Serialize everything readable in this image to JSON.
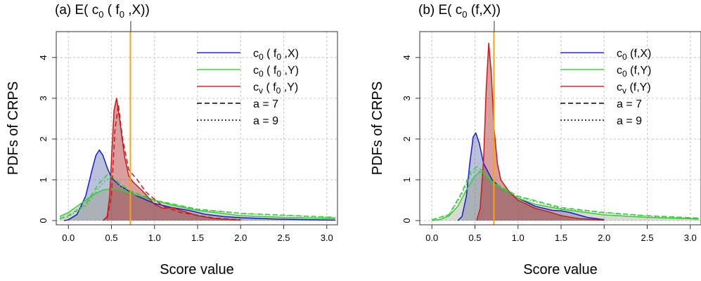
{
  "chart_data": [
    {
      "type": "area",
      "panel_label": "(a)",
      "title_prefix": "E(",
      "title_main": "c",
      "title_sub": "0",
      "title_args": " ( f",
      "title_args_sub": "0",
      "title_tail": " ,X))",
      "xlabel": "Score value",
      "ylabel": "PDFs of CRPS",
      "xlim": [
        -0.1,
        3.1
      ],
      "ylim": [
        0,
        4.6
      ],
      "xticks": [
        "0.0",
        "0.5",
        "1.0",
        "1.5",
        "2.0",
        "2.5",
        "3.0"
      ],
      "yticks": [
        "0",
        "1",
        "2",
        "3",
        "4"
      ],
      "grid": true,
      "legend_position": "top-right",
      "vline_x": 0.72,
      "legend": [
        {
          "base": "c",
          "sub": "0",
          "args": " ( f",
          "args_sub": "0",
          "tail": " ,X)",
          "color": "#2a2ad9",
          "style": "solid"
        },
        {
          "base": "c",
          "sub": "0",
          "args": " ( f",
          "args_sub": "0",
          "tail": " ,Y)",
          "color": "#3fd83f",
          "style": "solid"
        },
        {
          "base": "c",
          "sub": "v",
          "args": " ( f",
          "args_sub": "0",
          "tail": " ,Y)",
          "color": "#d42a2a",
          "style": "solid"
        },
        {
          "text": "a = 7",
          "color": "#000000",
          "style": "dashed"
        },
        {
          "text": "a = 9",
          "color": "#000000",
          "style": "dotted"
        }
      ],
      "series": [
        {
          "name": "c0 (f0,X)",
          "color": "#1a1ad0",
          "fill": "rgba(90,110,170,0.42)",
          "style": "solid",
          "x": [
            -0.05,
            0.0,
            0.1,
            0.2,
            0.27,
            0.32,
            0.36,
            0.4,
            0.45,
            0.5,
            0.6,
            0.8,
            1.0,
            1.2,
            1.4,
            1.6,
            1.8,
            2.0,
            2.4,
            2.8,
            3.1
          ],
          "y": [
            0.0,
            0.02,
            0.15,
            0.6,
            1.2,
            1.6,
            1.73,
            1.6,
            1.3,
            1.05,
            0.85,
            0.6,
            0.42,
            0.32,
            0.25,
            0.15,
            0.1,
            0.07,
            0.04,
            0.02,
            0.01
          ]
        },
        {
          "name": "c0 (f0,Y)",
          "color": "#33cc33",
          "fill": "rgba(140,150,120,0.35)",
          "style": "solid",
          "x": [
            -0.1,
            0.0,
            0.1,
            0.2,
            0.3,
            0.4,
            0.5,
            0.6,
            0.8,
            1.0,
            1.2,
            1.5,
            2.0,
            2.5,
            3.1
          ],
          "y": [
            0.1,
            0.2,
            0.35,
            0.5,
            0.65,
            0.75,
            0.78,
            0.75,
            0.62,
            0.5,
            0.38,
            0.25,
            0.12,
            0.08,
            0.05
          ]
        },
        {
          "name": "cv (f0,Y)",
          "color": "#cc1a1a",
          "fill": "rgba(170,40,40,0.45)",
          "style": "solid",
          "x": [
            0.4,
            0.45,
            0.48,
            0.5,
            0.53,
            0.56,
            0.6,
            0.65,
            0.7,
            0.75,
            0.85,
            1.0,
            1.1,
            1.2,
            1.35,
            1.5,
            1.7,
            2.0
          ],
          "y": [
            0.0,
            0.1,
            0.6,
            1.5,
            2.7,
            3.0,
            2.4,
            1.6,
            1.1,
            0.95,
            0.75,
            0.4,
            0.3,
            0.32,
            0.22,
            0.12,
            0.05,
            0.01
          ]
        },
        {
          "name": "c0 (f0,Y) a=7",
          "color": "#33cc33",
          "fill": "none",
          "style": "dashed",
          "x": [
            -0.1,
            0.0,
            0.2,
            0.35,
            0.45,
            0.55,
            0.7,
            1.0,
            1.5,
            2.0,
            3.1
          ],
          "y": [
            0.05,
            0.12,
            0.4,
            0.9,
            1.12,
            1.0,
            0.75,
            0.5,
            0.28,
            0.18,
            0.08
          ]
        },
        {
          "name": "cv (f0,Y) a=7",
          "color": "#cc1a1a",
          "fill": "none",
          "style": "dashed",
          "x": [
            0.45,
            0.5,
            0.54,
            0.58,
            0.63,
            0.7,
            0.8,
            0.9,
            1.1,
            1.3,
            1.7,
            2.0
          ],
          "y": [
            0.05,
            0.6,
            2.2,
            2.85,
            2.0,
            1.25,
            1.0,
            0.7,
            0.35,
            0.2,
            0.06,
            0.02
          ]
        },
        {
          "name": "c0 (f0,Y) a=9",
          "color": "#33cc33",
          "fill": "none",
          "style": "dotted",
          "x": [
            -0.1,
            0.0,
            0.2,
            0.35,
            0.45,
            0.55,
            0.7,
            1.0,
            1.5,
            2.0,
            3.1
          ],
          "y": [
            0.04,
            0.1,
            0.35,
            0.8,
            1.02,
            0.92,
            0.7,
            0.48,
            0.27,
            0.17,
            0.07
          ]
        }
      ]
    },
    {
      "type": "area",
      "panel_label": "(b)",
      "title_prefix": "E(",
      "title_main": "c",
      "title_sub": "0",
      "title_args": " (f,X))",
      "title_args_sub": "",
      "title_tail": "",
      "xlabel": "Score value",
      "ylabel": "PDFs of CRPS",
      "xlim": [
        -0.1,
        3.1
      ],
      "ylim": [
        0,
        4.6
      ],
      "xticks": [
        "0.0",
        "0.5",
        "1.0",
        "1.5",
        "2.0",
        "2.5",
        "3.0"
      ],
      "yticks": [
        "0",
        "1",
        "2",
        "3",
        "4"
      ],
      "grid": true,
      "legend_position": "top-right",
      "vline_x": 0.72,
      "legend": [
        {
          "base": "c",
          "sub": "0",
          "args": " (f,X)",
          "args_sub": "",
          "tail": "",
          "color": "#2a2ad9",
          "style": "solid"
        },
        {
          "base": "c",
          "sub": "0",
          "args": " (f,Y)",
          "args_sub": "",
          "tail": "",
          "color": "#3fd83f",
          "style": "solid"
        },
        {
          "base": "c",
          "sub": "v",
          "args": " (f,Y)",
          "args_sub": "",
          "tail": "",
          "color": "#d42a2a",
          "style": "solid"
        },
        {
          "text": "a = 7",
          "color": "#000000",
          "style": "dashed"
        },
        {
          "text": "a = 9",
          "color": "#000000",
          "style": "dotted"
        }
      ],
      "series": [
        {
          "name": "c0 (f,X)",
          "color": "#1a1ad0",
          "fill": "rgba(90,110,170,0.42)",
          "style": "solid",
          "x": [
            0.3,
            0.35,
            0.4,
            0.44,
            0.48,
            0.51,
            0.55,
            0.6,
            0.7,
            0.8,
            1.0,
            1.2,
            1.4,
            1.5,
            1.6,
            1.8,
            2.0
          ],
          "y": [
            0.0,
            0.1,
            0.6,
            1.4,
            2.05,
            2.15,
            1.9,
            1.4,
            1.0,
            0.8,
            0.55,
            0.35,
            0.25,
            0.24,
            0.2,
            0.08,
            0.02
          ]
        },
        {
          "name": "c0 (f,Y)",
          "color": "#33cc33",
          "fill": "rgba(140,150,120,0.35)",
          "style": "solid",
          "x": [
            0.0,
            0.1,
            0.2,
            0.3,
            0.4,
            0.5,
            0.56,
            0.62,
            0.7,
            0.8,
            1.0,
            1.2,
            1.5,
            2.0,
            2.5,
            3.1
          ],
          "y": [
            0.0,
            0.03,
            0.12,
            0.35,
            0.75,
            1.1,
            1.2,
            1.12,
            0.95,
            0.8,
            0.55,
            0.4,
            0.28,
            0.14,
            0.08,
            0.04
          ]
        },
        {
          "name": "cv (f,Y)",
          "color": "#cc1a1a",
          "fill": "rgba(170,40,40,0.45)",
          "style": "solid",
          "x": [
            0.52,
            0.56,
            0.6,
            0.63,
            0.66,
            0.69,
            0.72,
            0.76,
            0.8,
            0.9,
            1.0,
            1.2,
            1.35,
            1.5,
            1.7,
            2.0
          ],
          "y": [
            0.0,
            0.3,
            1.5,
            3.2,
            4.35,
            3.6,
            2.3,
            1.4,
            1.0,
            0.7,
            0.5,
            0.3,
            0.22,
            0.12,
            0.05,
            0.01
          ]
        },
        {
          "name": "c0 (f,Y) a=7",
          "color": "#33cc33",
          "fill": "none",
          "style": "dashed",
          "x": [
            0.0,
            0.2,
            0.35,
            0.45,
            0.52,
            0.6,
            0.7,
            1.0,
            1.5,
            2.0,
            2.5,
            3.1
          ],
          "y": [
            0.02,
            0.15,
            0.7,
            1.2,
            1.32,
            1.2,
            0.95,
            0.6,
            0.32,
            0.2,
            0.12,
            0.06
          ]
        },
        {
          "name": "c0 (f,Y) a=9",
          "color": "#33cc33",
          "fill": "none",
          "style": "dotted",
          "x": [
            0.0,
            0.2,
            0.35,
            0.45,
            0.52,
            0.6,
            0.7,
            1.0,
            1.5,
            2.0,
            2.5,
            3.1
          ],
          "y": [
            0.02,
            0.14,
            0.65,
            1.12,
            1.25,
            1.15,
            0.92,
            0.58,
            0.3,
            0.19,
            0.11,
            0.05
          ]
        }
      ]
    }
  ]
}
